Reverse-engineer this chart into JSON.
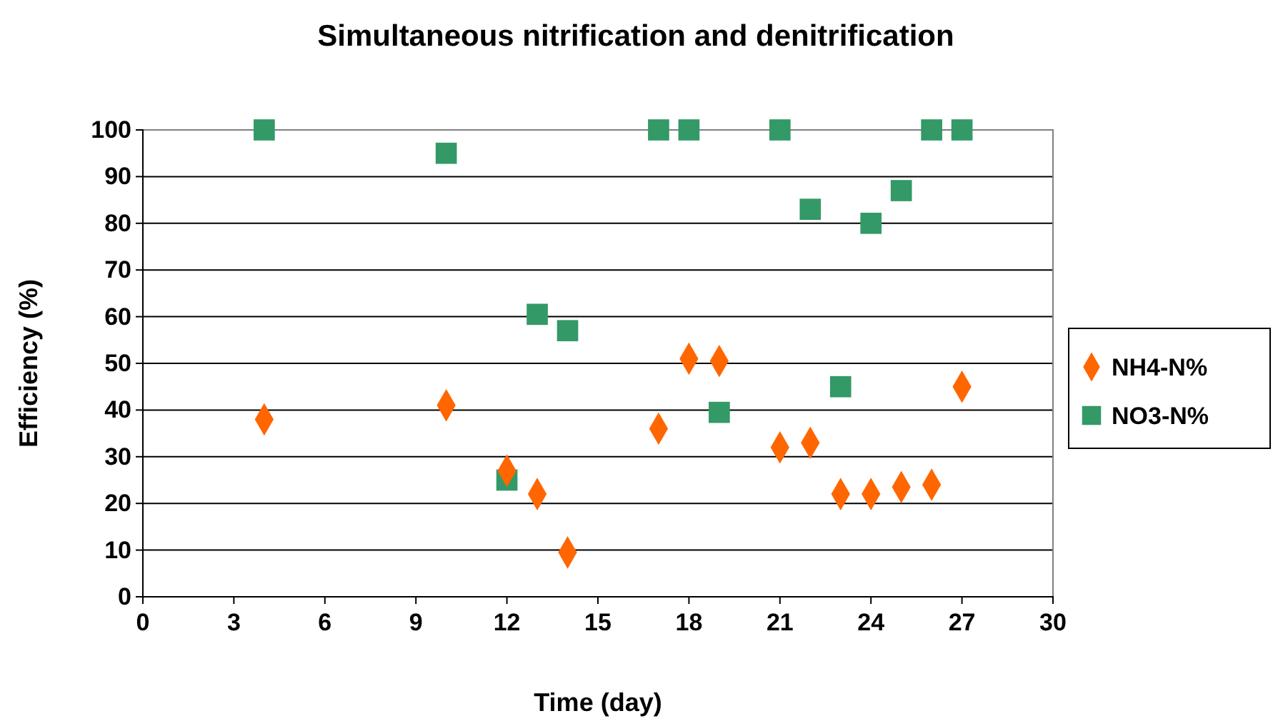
{
  "chart_data": {
    "type": "scatter",
    "title": "Simultaneous nitrification and denitrification",
    "xlabel": "Time (day)",
    "ylabel": "Efficiency (%)",
    "xlim": [
      0,
      30
    ],
    "xticks": [
      0,
      3,
      6,
      9,
      12,
      15,
      18,
      21,
      24,
      27,
      30
    ],
    "ylim": [
      0,
      100
    ],
    "yticks": [
      0,
      10,
      20,
      30,
      40,
      50,
      60,
      70,
      80,
      90,
      100
    ],
    "grid": "y",
    "legend": "right",
    "series": [
      {
        "name": "NH4-N%",
        "color": "#ff6600",
        "marker": "diamond",
        "x": [
          4,
          10,
          12,
          13,
          14,
          17,
          18,
          19,
          21,
          22,
          23,
          24,
          25,
          26,
          27
        ],
        "values": [
          38,
          41,
          27,
          22,
          9.5,
          36,
          51,
          50.5,
          32,
          33,
          22,
          22,
          23.5,
          24,
          45
        ]
      },
      {
        "name": "NO3-N%",
        "color": "#339966",
        "marker": "square",
        "x": [
          4,
          10,
          12,
          13,
          14,
          17,
          18,
          19,
          21,
          22,
          23,
          24,
          25,
          26,
          27
        ],
        "values": [
          100,
          95,
          25,
          60.5,
          57,
          100,
          100,
          39.5,
          100,
          83,
          45,
          80,
          87,
          100,
          100
        ]
      }
    ]
  }
}
